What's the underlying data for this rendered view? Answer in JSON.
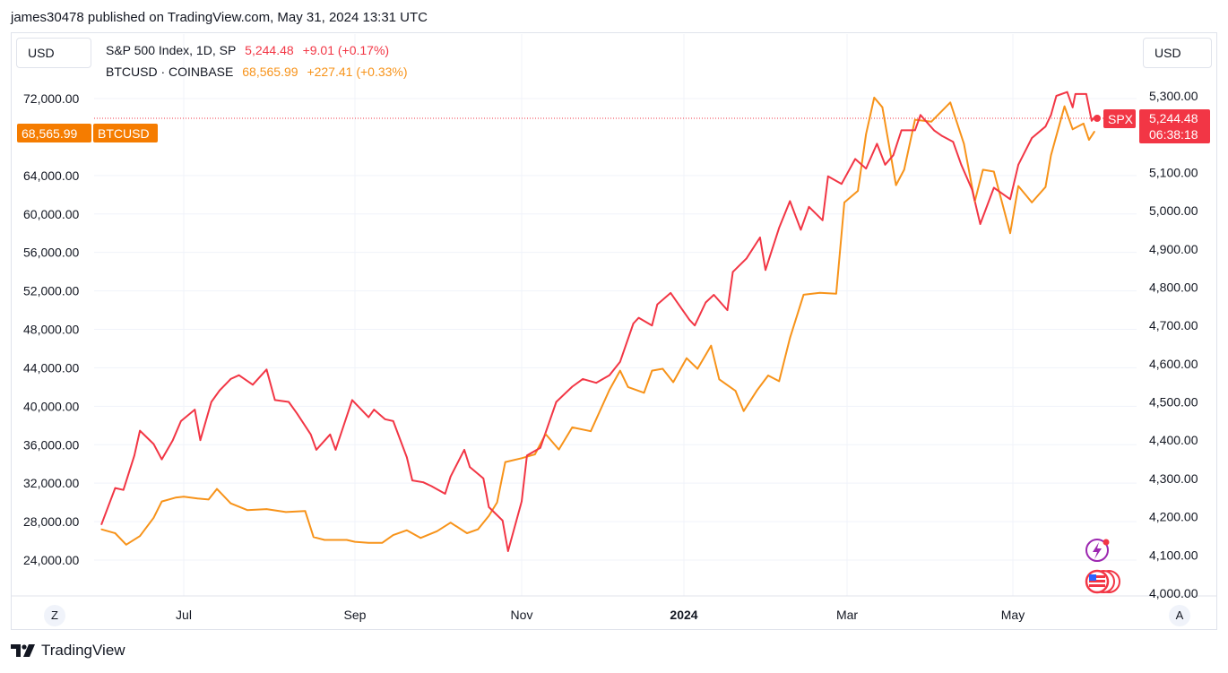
{
  "header": {
    "published": "james30478 published on TradingView.com, May 31, 2024 13:31 UTC"
  },
  "currency_left": "USD",
  "currency_right": "USD",
  "legend": {
    "spx": {
      "name": "S&P 500 Index, 1D, SP",
      "price": "5,244.48",
      "change": "+9.01 (+0.17%)"
    },
    "btc": {
      "name": "BTCUSD · COINBASE",
      "price": "68,565.99",
      "change": "+227.41 (+0.33%)"
    }
  },
  "tags": {
    "btc_price": "68,565.99",
    "btc_label": "BTCUSD",
    "spx_label": "SPX",
    "spx_price": "5,244.48",
    "spx_countdown": "06:38:18"
  },
  "corner_left": "Z",
  "corner_right": "A",
  "footer": {
    "brand": "TradingView"
  },
  "colors": {
    "spx": "#f23645",
    "btc": "#f7931a",
    "btc_tag": "#f57c00",
    "grid": "#f0f3fa",
    "dotted": "#f23645"
  },
  "icons": [
    "lightning-icon",
    "us-flag-events-icon"
  ],
  "chart_data": {
    "type": "line",
    "x_ticks": [
      "Jul",
      "Sep",
      "Nov",
      "2024",
      "Mar",
      "May"
    ],
    "left_axis": {
      "ticks": [
        "72,000.00",
        "64,000.00",
        "60,000.00",
        "56,000.00",
        "52,000.00",
        "48,000.00",
        "44,000.00",
        "40,000.00",
        "36,000.00",
        "32,000.00",
        "28,000.00",
        "24,000.00"
      ],
      "ylim": [
        20000,
        74000
      ]
    },
    "right_axis": {
      "ticks": [
        "5,300.00",
        "5,100.00",
        "5,000.00",
        "4,900.00",
        "4,800.00",
        "4,700.00",
        "4,600.00",
        "4,500.00",
        "4,400.00",
        "4,300.00",
        "4,200.00",
        "4,100.00",
        "4,000.00"
      ],
      "ylim": [
        4000,
        5300
      ]
    },
    "series": [
      {
        "name": "S&P 500 Index, 1D, SP",
        "axis": "right",
        "x": [
          "2023-06-01",
          "2023-06-06",
          "2023-06-09",
          "2023-06-13",
          "2023-06-15",
          "2023-06-20",
          "2023-06-23",
          "2023-06-27",
          "2023-06-30",
          "2023-07-05",
          "2023-07-07",
          "2023-07-11",
          "2023-07-14",
          "2023-07-18",
          "2023-07-21",
          "2023-07-26",
          "2023-07-31",
          "2023-08-03",
          "2023-08-08",
          "2023-08-11",
          "2023-08-16",
          "2023-08-18",
          "2023-08-23",
          "2023-08-25",
          "2023-08-31",
          "2023-09-06",
          "2023-09-08",
          "2023-09-12",
          "2023-09-15",
          "2023-09-20",
          "2023-09-22",
          "2023-09-26",
          "2023-09-29",
          "2023-10-04",
          "2023-10-06",
          "2023-10-11",
          "2023-10-13",
          "2023-10-18",
          "2023-10-20",
          "2023-10-25",
          "2023-10-27",
          "2023-11-01",
          "2023-11-03",
          "2023-11-08",
          "2023-11-14",
          "2023-11-20",
          "2023-11-24",
          "2023-11-29",
          "2023-12-04",
          "2023-12-08",
          "2023-12-13",
          "2023-12-15",
          "2023-12-20",
          "2023-12-22",
          "2023-12-27",
          "2024-01-03",
          "2024-01-05",
          "2024-01-09",
          "2024-01-12",
          "2024-01-17",
          "2024-01-19",
          "2024-01-24",
          "2024-01-29",
          "2024-01-31",
          "2024-02-05",
          "2024-02-09",
          "2024-02-13",
          "2024-02-16",
          "2024-02-21",
          "2024-02-23",
          "2024-02-28",
          "2024-03-04",
          "2024-03-08",
          "2024-03-12",
          "2024-03-15",
          "2024-03-18",
          "2024-03-21",
          "2024-03-26",
          "2024-03-28",
          "2024-04-02",
          "2024-04-05",
          "2024-04-09",
          "2024-04-12",
          "2024-04-16",
          "2024-04-19",
          "2024-04-24",
          "2024-04-26",
          "2024-04-30",
          "2024-05-03",
          "2024-05-08",
          "2024-05-13",
          "2024-05-15",
          "2024-05-17",
          "2024-05-21",
          "2024-05-23",
          "2024-05-24",
          "2024-05-28",
          "2024-05-30",
          "2024-05-31"
        ],
        "y": [
          4180,
          4275,
          4270,
          4360,
          4425,
          4390,
          4350,
          4400,
          4450,
          4480,
          4400,
          4500,
          4530,
          4560,
          4570,
          4545,
          4585,
          4505,
          4500,
          4470,
          4415,
          4375,
          4415,
          4375,
          4505,
          4460,
          4480,
          4455,
          4450,
          4355,
          4295,
          4290,
          4280,
          4260,
          4305,
          4375,
          4330,
          4300,
          4225,
          4190,
          4110,
          4240,
          4360,
          4380,
          4500,
          4540,
          4560,
          4550,
          4570,
          4605,
          4705,
          4720,
          4700,
          4755,
          4785,
          4715,
          4700,
          4760,
          4780,
          4740,
          4840,
          4875,
          4930,
          4845,
          4955,
          5025,
          4950,
          5010,
          4975,
          5090,
          5070,
          5135,
          5110,
          5175,
          5120,
          5145,
          5210,
          5210,
          5250,
          5210,
          5195,
          5180,
          5120,
          5055,
          4965,
          5060,
          5050,
          5030,
          5120,
          5190,
          5220,
          5250,
          5300,
          5310,
          5270,
          5305,
          5305,
          5235,
          5244
        ]
      },
      {
        "name": "BTCUSD · COINBASE",
        "axis": "left",
        "x": [
          "2023-06-01",
          "2023-06-06",
          "2023-06-10",
          "2023-06-15",
          "2023-06-20",
          "2023-06-23",
          "2023-06-28",
          "2023-07-01",
          "2023-07-06",
          "2023-07-10",
          "2023-07-13",
          "2023-07-18",
          "2023-07-24",
          "2023-07-31",
          "2023-08-07",
          "2023-08-14",
          "2023-08-17",
          "2023-08-21",
          "2023-08-29",
          "2023-09-01",
          "2023-09-06",
          "2023-09-11",
          "2023-09-15",
          "2023-09-20",
          "2023-09-25",
          "2023-10-01",
          "2023-10-06",
          "2023-10-12",
          "2023-10-16",
          "2023-10-20",
          "2023-10-23",
          "2023-10-26",
          "2023-11-01",
          "2023-11-06",
          "2023-11-10",
          "2023-11-15",
          "2023-11-20",
          "2023-11-27",
          "2023-12-04",
          "2023-12-08",
          "2023-12-11",
          "2023-12-17",
          "2023-12-20",
          "2023-12-24",
          "2023-12-28",
          "2024-01-02",
          "2024-01-06",
          "2024-01-11",
          "2024-01-14",
          "2024-01-20",
          "2024-01-23",
          "2024-01-28",
          "2024-02-01",
          "2024-02-05",
          "2024-02-09",
          "2024-02-14",
          "2024-02-20",
          "2024-02-26",
          "2024-02-29",
          "2024-03-05",
          "2024-03-08",
          "2024-03-11",
          "2024-03-14",
          "2024-03-19",
          "2024-03-22",
          "2024-03-26",
          "2024-04-01",
          "2024-04-08",
          "2024-04-13",
          "2024-04-17",
          "2024-04-20",
          "2024-04-24",
          "2024-04-30",
          "2024-05-03",
          "2024-05-08",
          "2024-05-13",
          "2024-05-15",
          "2024-05-20",
          "2024-05-23",
          "2024-05-27",
          "2024-05-29",
          "2024-05-31"
        ],
        "y": [
          27200,
          26800,
          25600,
          26500,
          28400,
          30100,
          30500,
          30600,
          30400,
          30300,
          31400,
          29900,
          29200,
          29300,
          29000,
          29100,
          26400,
          26100,
          26100,
          25900,
          25800,
          25800,
          26600,
          27100,
          26300,
          27000,
          27900,
          26800,
          27200,
          28600,
          30000,
          34200,
          34600,
          35000,
          37100,
          35500,
          37800,
          37400,
          41700,
          43700,
          42000,
          41400,
          43700,
          43900,
          42500,
          45000,
          43900,
          46300,
          42800,
          41600,
          39500,
          41700,
          43200,
          42600,
          47100,
          51600,
          51800,
          51700,
          61200,
          62400,
          68300,
          72100,
          71100,
          63000,
          64600,
          69800,
          69600,
          71600,
          67300,
          61300,
          64600,
          64400,
          58000,
          62900,
          61200,
          62800,
          66100,
          71200,
          68800,
          69400,
          67700,
          68566
        ]
      }
    ]
  }
}
